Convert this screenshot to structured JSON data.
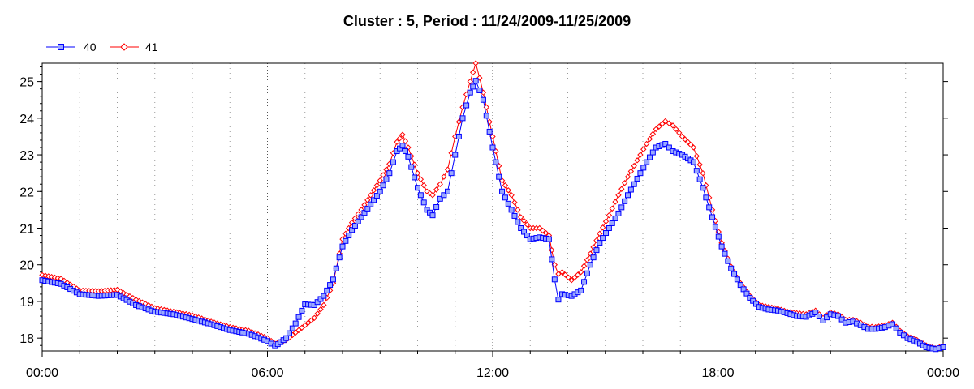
{
  "chart_data": {
    "type": "line",
    "title": "Cluster : 5, Period : 11/24/2009-11/25/2009",
    "xlabel": "",
    "ylabel": "",
    "x_tick_labels": [
      "00:00",
      "06:00",
      "12:00",
      "18:00",
      "00:00"
    ],
    "x_ticks_hours": [
      0,
      6,
      12,
      18,
      24
    ],
    "xlim_hours": [
      0,
      24
    ],
    "y_ticks": [
      18,
      19,
      20,
      21,
      22,
      23,
      24,
      25
    ],
    "ylim": [
      17.65,
      25.5
    ],
    "grid": "dotted vertical lines every hour, heavier at major ticks",
    "legend_position": "top-left",
    "series": [
      {
        "name": "40",
        "color": "#0000ff",
        "fill": "#9aa8ff",
        "marker": "square",
        "points": [
          [
            0,
            19.58
          ],
          [
            0.5,
            19.48
          ],
          [
            1,
            19.2
          ],
          [
            1.5,
            19.15
          ],
          [
            2,
            19.18
          ],
          [
            2.5,
            18.9
          ],
          [
            3,
            18.72
          ],
          [
            3.5,
            18.65
          ],
          [
            4,
            18.52
          ],
          [
            4.5,
            18.38
          ],
          [
            5,
            18.22
          ],
          [
            5.5,
            18.12
          ],
          [
            6,
            17.92
          ],
          [
            6.2,
            17.78
          ],
          [
            6.5,
            18.0
          ],
          [
            6.75,
            18.4
          ],
          [
            7,
            18.92
          ],
          [
            7.25,
            18.9
          ],
          [
            7.5,
            19.15
          ],
          [
            7.75,
            19.6
          ],
          [
            8,
            20.5
          ],
          [
            8.25,
            20.95
          ],
          [
            8.5,
            21.3
          ],
          [
            8.75,
            21.65
          ],
          [
            9,
            22.0
          ],
          [
            9.25,
            22.5
          ],
          [
            9.45,
            23.1
          ],
          [
            9.6,
            23.25
          ],
          [
            9.75,
            22.95
          ],
          [
            10,
            22.1
          ],
          [
            10.25,
            21.5
          ],
          [
            10.4,
            21.35
          ],
          [
            10.6,
            21.8
          ],
          [
            10.8,
            22.0
          ],
          [
            11,
            23.0
          ],
          [
            11.2,
            24.0
          ],
          [
            11.4,
            24.7
          ],
          [
            11.55,
            25.02
          ],
          [
            11.75,
            24.5
          ],
          [
            12,
            23.2
          ],
          [
            12.25,
            22.0
          ],
          [
            12.5,
            21.5
          ],
          [
            12.75,
            21.0
          ],
          [
            13,
            20.7
          ],
          [
            13.25,
            20.75
          ],
          [
            13.5,
            20.7
          ],
          [
            13.65,
            19.6
          ],
          [
            13.75,
            19.05
          ],
          [
            13.85,
            19.2
          ],
          [
            14.1,
            19.15
          ],
          [
            14.35,
            19.3
          ],
          [
            14.6,
            20.0
          ],
          [
            14.85,
            20.6
          ],
          [
            15.1,
            21.0
          ],
          [
            15.35,
            21.4
          ],
          [
            15.6,
            21.9
          ],
          [
            15.85,
            22.35
          ],
          [
            16.1,
            22.8
          ],
          [
            16.35,
            23.2
          ],
          [
            16.6,
            23.3
          ],
          [
            16.8,
            23.1
          ],
          [
            17.05,
            23.0
          ],
          [
            17.35,
            22.8
          ],
          [
            17.6,
            22.1
          ],
          [
            17.85,
            21.3
          ],
          [
            18.1,
            20.5
          ],
          [
            18.35,
            19.9
          ],
          [
            18.6,
            19.45
          ],
          [
            18.85,
            19.1
          ],
          [
            19.1,
            18.85
          ],
          [
            19.35,
            18.78
          ],
          [
            19.6,
            18.75
          ],
          [
            19.85,
            18.68
          ],
          [
            20.1,
            18.6
          ],
          [
            20.35,
            18.58
          ],
          [
            20.6,
            18.7
          ],
          [
            20.8,
            18.48
          ],
          [
            21.0,
            18.65
          ],
          [
            21.2,
            18.6
          ],
          [
            21.4,
            18.42
          ],
          [
            21.6,
            18.45
          ],
          [
            21.8,
            18.35
          ],
          [
            22.0,
            18.25
          ],
          [
            22.2,
            18.25
          ],
          [
            22.45,
            18.3
          ],
          [
            22.65,
            18.38
          ],
          [
            22.85,
            18.15
          ],
          [
            23.05,
            18.0
          ],
          [
            23.3,
            17.9
          ],
          [
            23.55,
            17.75
          ],
          [
            23.8,
            17.7
          ],
          [
            24,
            17.75
          ]
        ]
      },
      {
        "name": "41",
        "color": "#ff0000",
        "fill": "#ffffff",
        "marker": "diamond",
        "points": [
          [
            0,
            19.72
          ],
          [
            0.5,
            19.62
          ],
          [
            1,
            19.3
          ],
          [
            1.5,
            19.28
          ],
          [
            2,
            19.32
          ],
          [
            2.5,
            19.05
          ],
          [
            3,
            18.82
          ],
          [
            3.5,
            18.72
          ],
          [
            4,
            18.62
          ],
          [
            4.5,
            18.45
          ],
          [
            5,
            18.3
          ],
          [
            5.5,
            18.2
          ],
          [
            6,
            18.0
          ],
          [
            6.2,
            17.85
          ],
          [
            6.5,
            17.95
          ],
          [
            6.75,
            18.15
          ],
          [
            7,
            18.35
          ],
          [
            7.25,
            18.55
          ],
          [
            7.5,
            18.9
          ],
          [
            7.75,
            19.5
          ],
          [
            8,
            20.7
          ],
          [
            8.25,
            21.15
          ],
          [
            8.5,
            21.5
          ],
          [
            8.75,
            21.9
          ],
          [
            9,
            22.3
          ],
          [
            9.25,
            22.75
          ],
          [
            9.45,
            23.35
          ],
          [
            9.6,
            23.55
          ],
          [
            9.75,
            23.2
          ],
          [
            10,
            22.5
          ],
          [
            10.25,
            22.0
          ],
          [
            10.4,
            21.9
          ],
          [
            10.6,
            22.2
          ],
          [
            10.8,
            22.6
          ],
          [
            11,
            23.5
          ],
          [
            11.2,
            24.3
          ],
          [
            11.4,
            25.0
          ],
          [
            11.55,
            25.5
          ],
          [
            11.75,
            24.7
          ],
          [
            12,
            23.5
          ],
          [
            12.25,
            22.3
          ],
          [
            12.5,
            21.9
          ],
          [
            12.75,
            21.3
          ],
          [
            13,
            21.0
          ],
          [
            13.25,
            21.0
          ],
          [
            13.5,
            20.8
          ],
          [
            13.65,
            20.0
          ],
          [
            13.75,
            19.75
          ],
          [
            13.85,
            19.8
          ],
          [
            14.1,
            19.58
          ],
          [
            14.35,
            19.8
          ],
          [
            14.6,
            20.3
          ],
          [
            14.85,
            20.85
          ],
          [
            15.1,
            21.35
          ],
          [
            15.35,
            21.9
          ],
          [
            15.6,
            22.4
          ],
          [
            15.85,
            22.85
          ],
          [
            16.1,
            23.3
          ],
          [
            16.35,
            23.7
          ],
          [
            16.6,
            23.92
          ],
          [
            16.8,
            23.8
          ],
          [
            17.05,
            23.5
          ],
          [
            17.35,
            23.2
          ],
          [
            17.6,
            22.5
          ],
          [
            17.85,
            21.5
          ],
          [
            18.1,
            20.6
          ],
          [
            18.35,
            19.95
          ],
          [
            18.6,
            19.5
          ],
          [
            18.85,
            19.15
          ],
          [
            19.1,
            18.9
          ],
          [
            19.35,
            18.85
          ],
          [
            19.6,
            18.8
          ],
          [
            19.85,
            18.72
          ],
          [
            20.1,
            18.68
          ],
          [
            20.35,
            18.65
          ],
          [
            20.6,
            18.75
          ],
          [
            20.8,
            18.55
          ],
          [
            21.0,
            18.7
          ],
          [
            21.2,
            18.65
          ],
          [
            21.4,
            18.5
          ],
          [
            21.6,
            18.5
          ],
          [
            21.8,
            18.42
          ],
          [
            22.0,
            18.32
          ],
          [
            22.2,
            18.3
          ],
          [
            22.45,
            18.35
          ],
          [
            22.65,
            18.42
          ],
          [
            22.85,
            18.2
          ],
          [
            23.05,
            18.05
          ],
          [
            23.3,
            17.95
          ],
          [
            23.55,
            17.8
          ],
          [
            23.8,
            17.72
          ],
          [
            24,
            17.78
          ]
        ]
      }
    ]
  }
}
